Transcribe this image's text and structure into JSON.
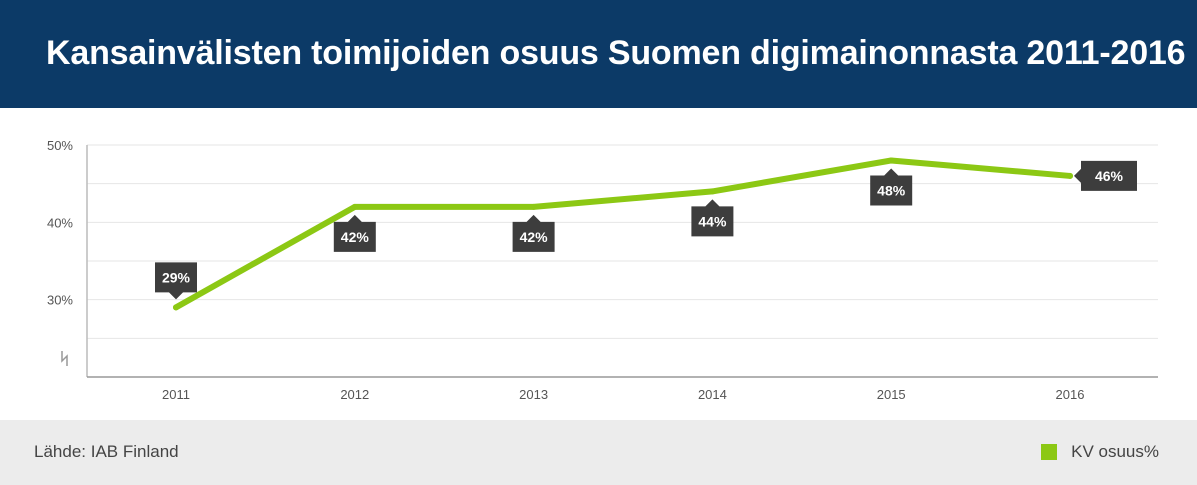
{
  "header": {
    "title": "Kansainvälisten toimijoiden osuus Suomen digimainonnasta 2011-2016"
  },
  "footer": {
    "source": "Lähde: IAB Finland"
  },
  "colors": {
    "header_bg": "#0c3a67",
    "line": "#8cc814",
    "label_bg": "#3d3d3d"
  },
  "chart_data": {
    "type": "line",
    "title": "Kansainvälisten toimijoiden osuus Suomen digimainonnasta 2011-2016",
    "xlabel": "",
    "ylabel": "",
    "categories": [
      "2011",
      "2012",
      "2013",
      "2014",
      "2015",
      "2016"
    ],
    "series": [
      {
        "name": "KV osuus%",
        "values": [
          29,
          42,
          42,
          44,
          48,
          46
        ],
        "labels": [
          "29%",
          "42%",
          "42%",
          "44%",
          "48%",
          "46%"
        ]
      }
    ],
    "ylim": [
      20,
      50
    ],
    "yticks": [
      {
        "value": 50,
        "label": "50%"
      },
      {
        "value": 40,
        "label": "40%"
      },
      {
        "value": 30,
        "label": "30%"
      }
    ],
    "axis_break": true,
    "grid": true,
    "legend": "bottom-right"
  }
}
